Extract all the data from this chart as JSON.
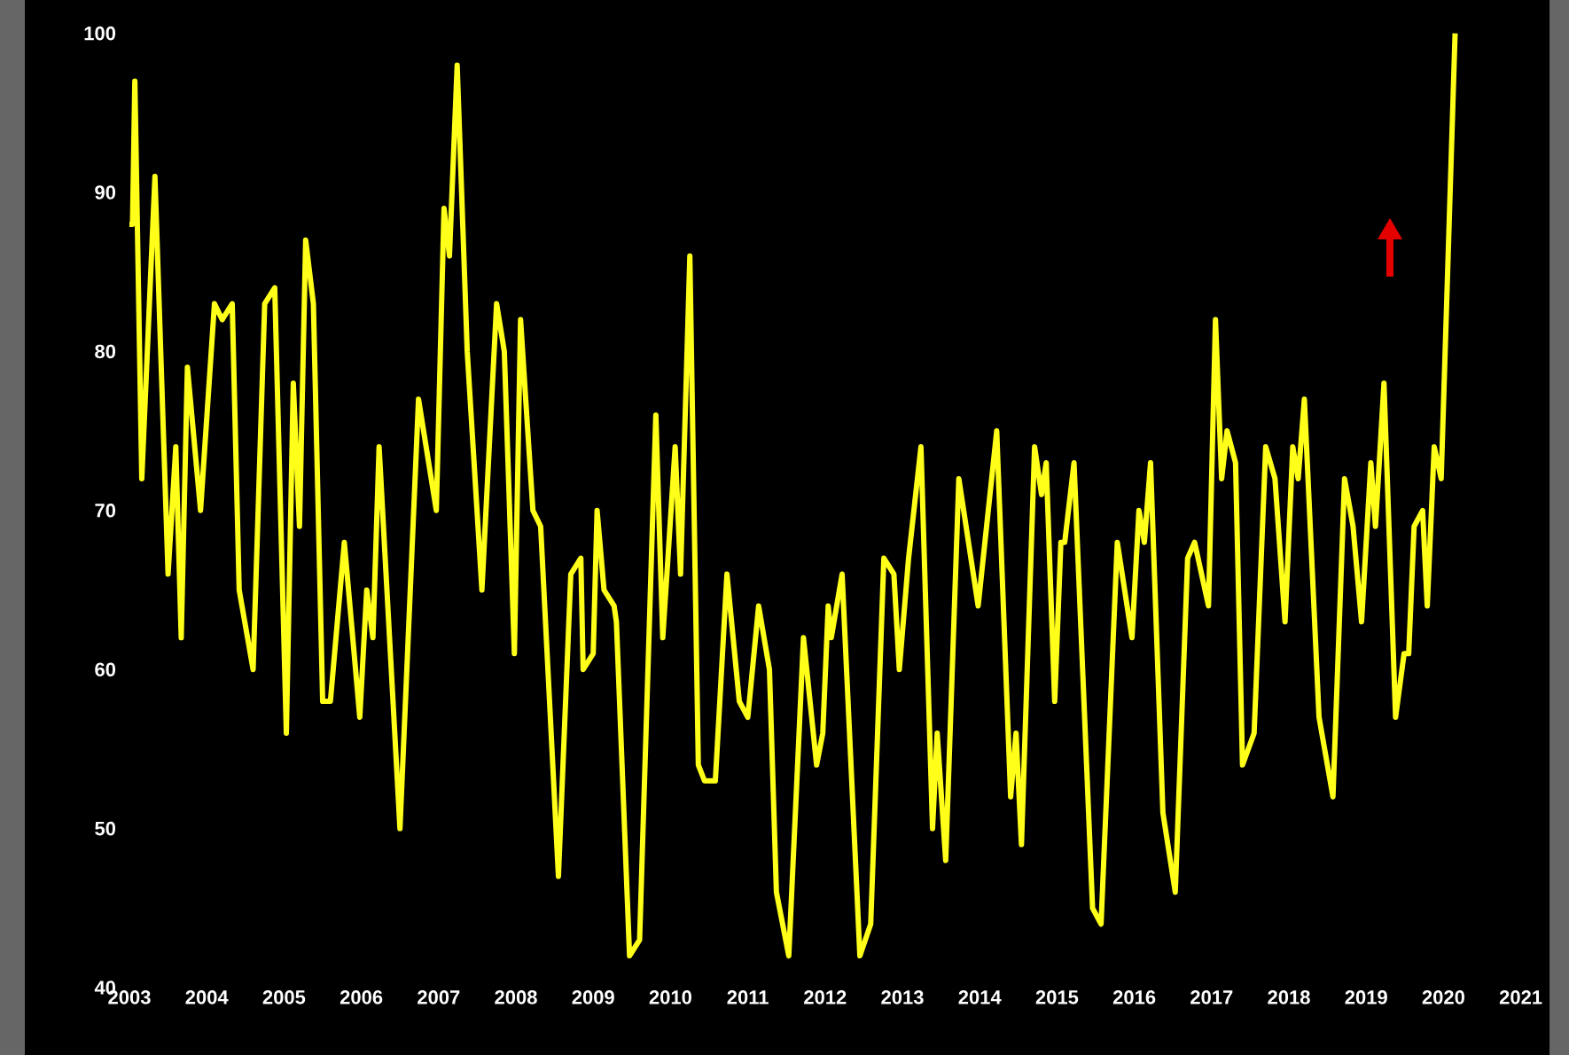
{
  "chart_data": {
    "type": "line",
    "color": "#ffff1a",
    "x": [
      2003.0,
      2003.04,
      2003.07,
      2003.16,
      2003.33,
      2003.5,
      2003.6,
      2003.67,
      2003.75,
      2003.92,
      2004.1,
      2004.2,
      2004.33,
      2004.42,
      2004.6,
      2004.75,
      2004.88,
      2005.03,
      2005.12,
      2005.2,
      2005.28,
      2005.38,
      2005.5,
      2005.6,
      2005.78,
      2005.98,
      2006.07,
      2006.15,
      2006.23,
      2006.5,
      2006.74,
      2006.97,
      2007.07,
      2007.14,
      2007.24,
      2007.37,
      2007.56,
      2007.75,
      2007.85,
      2007.98,
      2008.06,
      2008.22,
      2008.32,
      2008.55,
      2008.71,
      2008.84,
      2008.87,
      2009.0,
      2009.05,
      2009.14,
      2009.27,
      2009.3,
      2009.47,
      2009.6,
      2009.81,
      2009.9,
      2010.06,
      2010.13,
      2010.25,
      2010.36,
      2010.44,
      2010.58,
      2010.73,
      2010.89,
      2011.0,
      2011.14,
      2011.28,
      2011.37,
      2011.53,
      2011.72,
      2011.89,
      2011.97,
      2012.04,
      2012.08,
      2012.22,
      2012.45,
      2012.59,
      2012.76,
      2012.89,
      2012.96,
      2013.08,
      2013.24,
      2013.39,
      2013.45,
      2013.56,
      2013.73,
      2013.98,
      2014.22,
      2014.4,
      2014.47,
      2014.54,
      2014.71,
      2014.8,
      2014.86,
      2014.97,
      2015.05,
      2015.1,
      2015.22,
      2015.46,
      2015.57,
      2015.78,
      2015.97,
      2016.06,
      2016.13,
      2016.21,
      2016.37,
      2016.53,
      2016.69,
      2016.78,
      2016.96,
      2017.05,
      2017.13,
      2017.2,
      2017.31,
      2017.4,
      2017.55,
      2017.7,
      2017.82,
      2017.95,
      2018.05,
      2018.12,
      2018.2,
      2018.39,
      2018.57,
      2018.72,
      2018.83,
      2018.94,
      2019.06,
      2019.12,
      2019.23,
      2019.38,
      2019.49,
      2019.55,
      2019.62,
      2019.73,
      2019.79,
      2019.88,
      2019.97,
      2020.15
    ],
    "values": [
      88,
      88,
      97,
      72,
      91,
      66,
      74,
      62,
      79,
      70,
      83,
      82,
      83,
      65,
      60,
      83,
      84,
      56,
      78,
      69,
      87,
      83,
      58,
      58,
      68,
      57,
      65,
      62,
      74,
      50,
      77,
      70,
      89,
      86,
      98,
      80,
      65,
      83,
      80,
      61,
      82,
      70,
      69,
      47,
      66,
      67,
      60,
      61,
      70,
      65,
      64,
      63,
      42,
      43,
      76,
      62,
      74,
      66,
      86,
      54,
      53,
      53,
      66,
      58,
      57,
      64,
      60,
      46,
      42,
      62,
      54,
      56,
      64,
      62,
      66,
      42,
      44,
      67,
      66,
      60,
      67,
      74,
      50,
      56,
      48,
      72,
      64,
      75,
      52,
      56,
      49,
      74,
      71,
      73,
      58,
      68,
      68,
      73,
      45,
      44,
      68,
      62,
      70,
      68,
      73,
      51,
      46,
      67,
      68,
      64,
      82,
      72,
      75,
      73,
      54,
      56,
      74,
      72,
      63,
      74,
      72,
      77,
      57,
      52,
      72,
      69,
      63,
      73,
      69,
      78,
      57,
      61,
      61,
      69,
      70,
      64,
      74,
      72,
      100
    ],
    "xlim": [
      2003,
      2021
    ],
    "ylim": [
      40,
      100
    ],
    "xticks": [
      2003,
      2004,
      2005,
      2006,
      2007,
      2008,
      2009,
      2010,
      2011,
      2012,
      2013,
      2014,
      2015,
      2016,
      2017,
      2018,
      2019,
      2020,
      2021
    ],
    "yticks": [
      40,
      50,
      60,
      70,
      80,
      90,
      100
    ]
  }
}
